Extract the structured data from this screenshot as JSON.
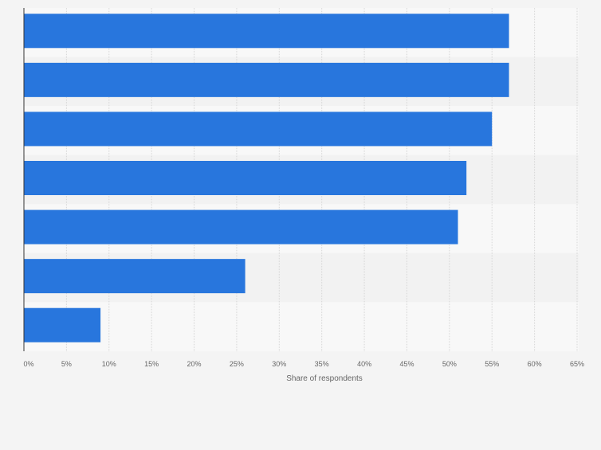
{
  "chart_data": {
    "type": "bar",
    "orientation": "horizontal",
    "categories": [
      "",
      "",
      "",
      "",
      "",
      "",
      ""
    ],
    "values": [
      57,
      57,
      55,
      52,
      51,
      26,
      9
    ],
    "xlabel": "Share of respondents",
    "xlim": [
      0,
      65
    ],
    "xticks": [
      "0%",
      "5%",
      "10%",
      "15%",
      "20%",
      "25%",
      "30%",
      "35%",
      "40%",
      "45%",
      "50%",
      "55%",
      "60%",
      "65%"
    ],
    "grid": true,
    "legend": "none"
  },
  "colors": {
    "bar": "#2876dd",
    "background": "#f4f4f4",
    "band_light": "#f8f8f8",
    "band_dark": "#f2f2f2",
    "grid": "#d7d7d7",
    "axis": "#333333",
    "tick_text": "#666666"
  }
}
